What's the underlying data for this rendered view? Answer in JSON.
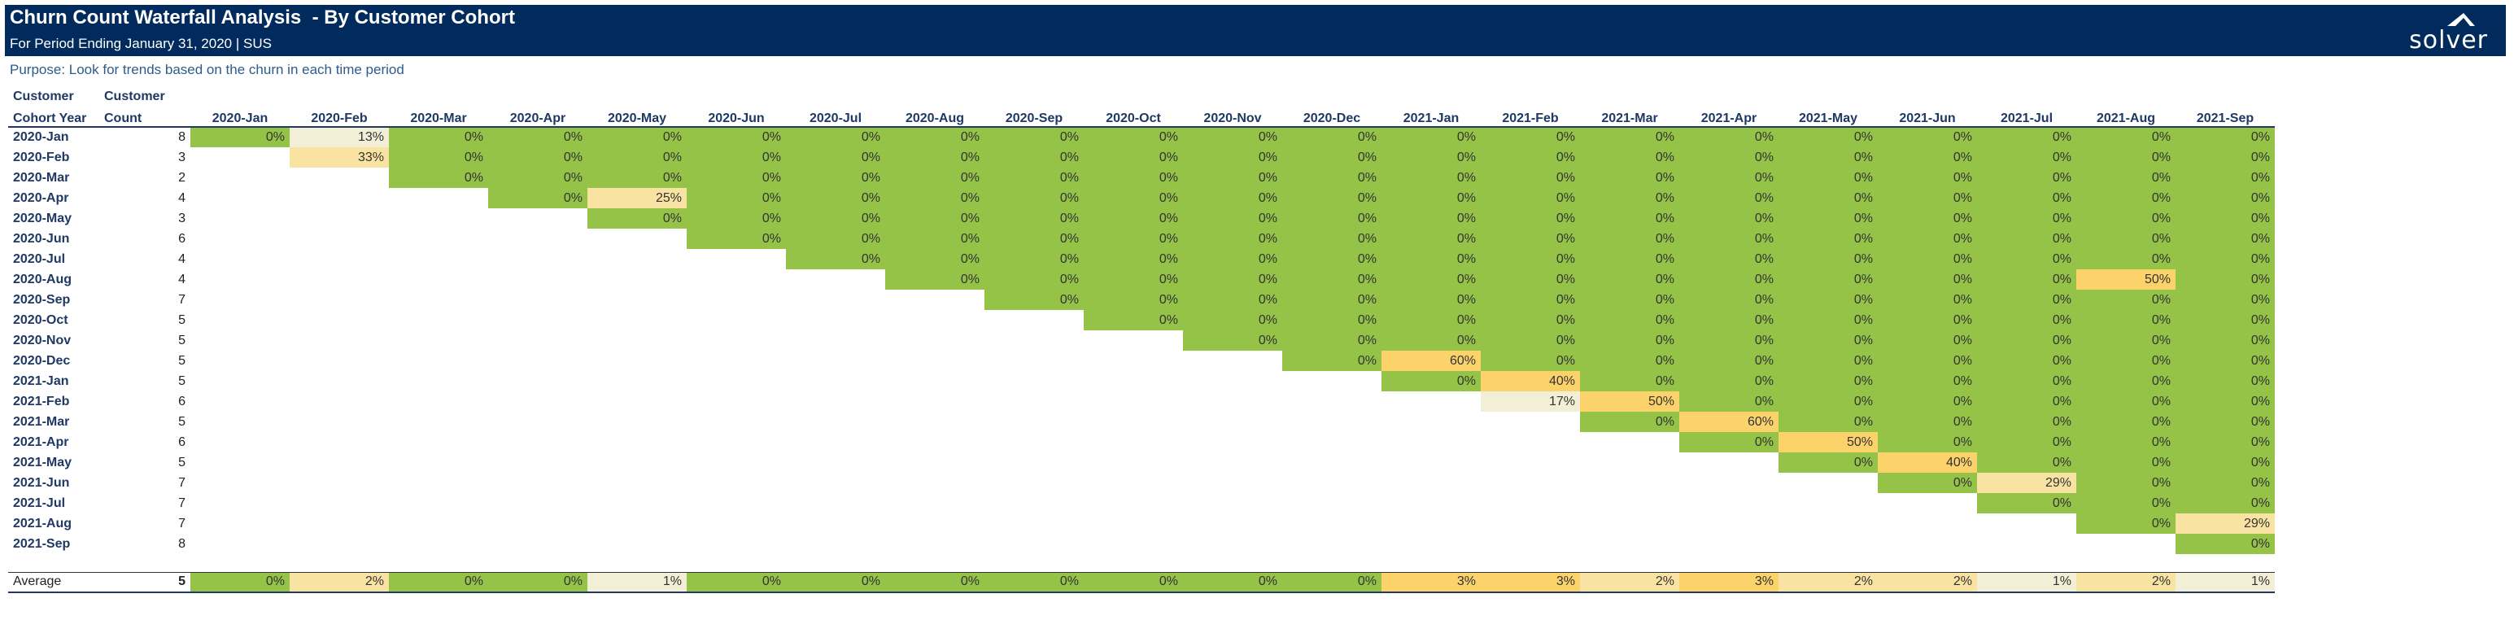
{
  "header": {
    "title": "Churn Count Waterfall Analysis  - By Customer Cohort",
    "subtitle": "For Period Ending January 31, 2020 | SUS",
    "logo_text": "solver"
  },
  "purpose": "Purpose: Look for trends based on the churn in each time period",
  "table": {
    "col_label_1": [
      "Customer",
      "Cohort Year"
    ],
    "col_label_2": [
      "Customer",
      "Count"
    ],
    "months": [
      "2020-Jan",
      "2020-Feb",
      "2020-Mar",
      "2020-Apr",
      "2020-May",
      "2020-Jun",
      "2020-Jul",
      "2020-Aug",
      "2020-Sep",
      "2020-Oct",
      "2020-Nov",
      "2020-Dec",
      "2021-Jan",
      "2021-Feb",
      "2021-Mar",
      "2021-Apr",
      "2021-May",
      "2021-Jun",
      "2021-Jul",
      "2021-Aug",
      "2021-Sep"
    ],
    "rows": [
      {
        "cohort": "2020-Jan",
        "count": "8",
        "start": 0,
        "values": [
          "0%",
          "13%",
          "0%",
          "0%",
          "0%",
          "0%",
          "0%",
          "0%",
          "0%",
          "0%",
          "0%",
          "0%",
          "0%",
          "0%",
          "0%",
          "0%",
          "0%",
          "0%",
          "0%",
          "0%",
          "0%"
        ]
      },
      {
        "cohort": "2020-Feb",
        "count": "3",
        "start": 1,
        "values": [
          "33%",
          "0%",
          "0%",
          "0%",
          "0%",
          "0%",
          "0%",
          "0%",
          "0%",
          "0%",
          "0%",
          "0%",
          "0%",
          "0%",
          "0%",
          "0%",
          "0%",
          "0%",
          "0%",
          "0%"
        ]
      },
      {
        "cohort": "2020-Mar",
        "count": "2",
        "start": 2,
        "values": [
          "0%",
          "0%",
          "0%",
          "0%",
          "0%",
          "0%",
          "0%",
          "0%",
          "0%",
          "0%",
          "0%",
          "0%",
          "0%",
          "0%",
          "0%",
          "0%",
          "0%",
          "0%",
          "0%"
        ]
      },
      {
        "cohort": "2020-Apr",
        "count": "4",
        "start": 3,
        "values": [
          "0%",
          "25%",
          "0%",
          "0%",
          "0%",
          "0%",
          "0%",
          "0%",
          "0%",
          "0%",
          "0%",
          "0%",
          "0%",
          "0%",
          "0%",
          "0%",
          "0%",
          "0%"
        ]
      },
      {
        "cohort": "2020-May",
        "count": "3",
        "start": 4,
        "values": [
          "0%",
          "0%",
          "0%",
          "0%",
          "0%",
          "0%",
          "0%",
          "0%",
          "0%",
          "0%",
          "0%",
          "0%",
          "0%",
          "0%",
          "0%",
          "0%",
          "0%"
        ]
      },
      {
        "cohort": "2020-Jun",
        "count": "6",
        "start": 5,
        "values": [
          "0%",
          "0%",
          "0%",
          "0%",
          "0%",
          "0%",
          "0%",
          "0%",
          "0%",
          "0%",
          "0%",
          "0%",
          "0%",
          "0%",
          "0%",
          "0%"
        ]
      },
      {
        "cohort": "2020-Jul",
        "count": "4",
        "start": 6,
        "values": [
          "0%",
          "0%",
          "0%",
          "0%",
          "0%",
          "0%",
          "0%",
          "0%",
          "0%",
          "0%",
          "0%",
          "0%",
          "0%",
          "0%",
          "0%"
        ]
      },
      {
        "cohort": "2020-Aug",
        "count": "4",
        "start": 7,
        "values": [
          "0%",
          "0%",
          "0%",
          "0%",
          "0%",
          "0%",
          "0%",
          "0%",
          "0%",
          "0%",
          "0%",
          "0%",
          "50%",
          "0%"
        ]
      },
      {
        "cohort": "2020-Sep",
        "count": "7",
        "start": 8,
        "values": [
          "0%",
          "0%",
          "0%",
          "0%",
          "0%",
          "0%",
          "0%",
          "0%",
          "0%",
          "0%",
          "0%",
          "0%",
          "0%"
        ]
      },
      {
        "cohort": "2020-Oct",
        "count": "5",
        "start": 9,
        "values": [
          "0%",
          "0%",
          "0%",
          "0%",
          "0%",
          "0%",
          "0%",
          "0%",
          "0%",
          "0%",
          "0%",
          "0%"
        ]
      },
      {
        "cohort": "2020-Nov",
        "count": "5",
        "start": 10,
        "values": [
          "0%",
          "0%",
          "0%",
          "0%",
          "0%",
          "0%",
          "0%",
          "0%",
          "0%",
          "0%",
          "0%"
        ]
      },
      {
        "cohort": "2020-Dec",
        "count": "5",
        "start": 11,
        "values": [
          "0%",
          "60%",
          "0%",
          "0%",
          "0%",
          "0%",
          "0%",
          "0%",
          "0%",
          "0%"
        ]
      },
      {
        "cohort": "2021-Jan",
        "count": "5",
        "start": 12,
        "values": [
          "0%",
          "40%",
          "0%",
          "0%",
          "0%",
          "0%",
          "0%",
          "0%",
          "0%"
        ]
      },
      {
        "cohort": "2021-Feb",
        "count": "6",
        "start": 13,
        "values": [
          "17%",
          "50%",
          "0%",
          "0%",
          "0%",
          "0%",
          "0%",
          "0%"
        ]
      },
      {
        "cohort": "2021-Mar",
        "count": "5",
        "start": 14,
        "values": [
          "0%",
          "60%",
          "0%",
          "0%",
          "0%",
          "0%",
          "0%"
        ]
      },
      {
        "cohort": "2021-Apr",
        "count": "6",
        "start": 15,
        "values": [
          "0%",
          "50%",
          "0%",
          "0%",
          "0%",
          "0%"
        ]
      },
      {
        "cohort": "2021-May",
        "count": "5",
        "start": 16,
        "values": [
          "0%",
          "40%",
          "0%",
          "0%",
          "0%"
        ]
      },
      {
        "cohort": "2021-Jun",
        "count": "7",
        "start": 17,
        "values": [
          "0%",
          "29%",
          "0%",
          "0%"
        ]
      },
      {
        "cohort": "2021-Jul",
        "count": "7",
        "start": 18,
        "values": [
          "0%",
          "0%",
          "0%"
        ]
      },
      {
        "cohort": "2021-Aug",
        "count": "7",
        "start": 19,
        "values": [
          "0%",
          "29%"
        ]
      },
      {
        "cohort": "2021-Sep",
        "count": "8",
        "start": 20,
        "values": [
          "0%"
        ]
      }
    ],
    "average": {
      "label": "Average",
      "count": "5",
      "values": [
        "0%",
        "2%",
        "0%",
        "0%",
        "1%",
        "0%",
        "0%",
        "0%",
        "0%",
        "0%",
        "0%",
        "0%",
        "3%",
        "3%",
        "2%",
        "3%",
        "2%",
        "2%",
        "1%",
        "2%",
        "1%"
      ]
    }
  },
  "colors": {
    "banner": "#002b5c",
    "zero": "#94c348",
    "low": "#f3efd7",
    "mid": "#f9e3a2",
    "high": "#fcd36b"
  }
}
